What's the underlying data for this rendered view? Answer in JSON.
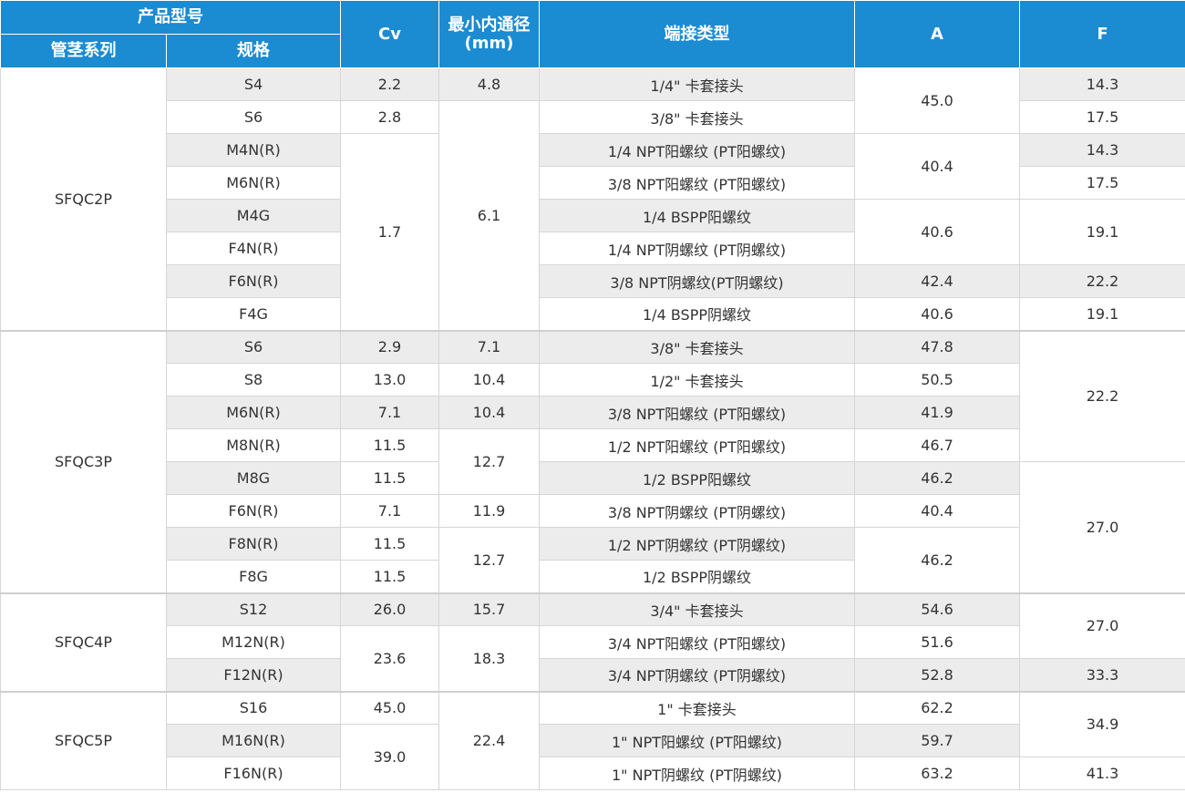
{
  "header": {
    "product_model": "产品型号",
    "series": "管茎系列",
    "spec": "规格",
    "cv": "Cv",
    "bore_line1": "最小内通径",
    "bore_line2": "(mm)",
    "end_type": "端接类型",
    "a": "A",
    "f": "F"
  },
  "series_names": [
    "SFQC2P",
    "SFQC3P",
    "SFQC4P",
    "SFQC5P"
  ],
  "specs": [
    "S4",
    "S6",
    "M4N(R)",
    "M6N(R)",
    "M4G",
    "F4N(R)",
    "F6N(R)",
    "F4G",
    "S6",
    "S8",
    "M6N(R)",
    "M8N(R)",
    "M8G",
    "F6N(R)",
    "F8N(R)",
    "F8G",
    "S12",
    "M12N(R)",
    "F12N(R)",
    "S16",
    "M16N(R)",
    "F16N(R)"
  ],
  "cv": [
    "2.2",
    "2.8",
    "1.7",
    "2.9",
    "13.0",
    "7.1",
    "11.5",
    "11.5",
    "7.1",
    "11.5",
    "11.5",
    "26.0",
    "23.6",
    "45.0",
    "39.0"
  ],
  "bore": [
    "4.8",
    "6.1",
    "7.1",
    "10.4",
    "10.4",
    "12.7",
    "11.9",
    "12.7",
    "15.7",
    "18.3",
    "22.4"
  ],
  "end_types": [
    "1/4\" 卡套接头",
    "3/8\" 卡套接头",
    "1/4 NPT阳螺纹 (PT阳螺纹)",
    "3/8 NPT阳螺纹 (PT阳螺纹)",
    "1/4 BSPP阳螺纹",
    "1/4 NPT阴螺纹 (PT阴螺纹)",
    "3/8 NPT阴螺纹(PT阴螺纹)",
    "1/4 BSPP阴螺纹",
    "3/8\" 卡套接头",
    "1/2\" 卡套接头",
    "3/8 NPT阳螺纹 (PT阳螺纹)",
    "1/2 NPT阳螺纹 (PT阳螺纹)",
    "1/2 BSPP阳螺纹",
    "3/8 NPT阴螺纹 (PT阴螺纹)",
    "1/2 NPT阴螺纹 (PT阴螺纹)",
    "1/2 BSPP阴螺纹",
    "3/4\" 卡套接头",
    "3/4 NPT阳螺纹 (PT阳螺纹)",
    "3/4 NPT阴螺纹 (PT阴螺纹)",
    "1\" 卡套接头",
    "1\" NPT阳螺纹 (PT阳螺纹)",
    "1\" NPT阴螺纹 (PT阴螺纹)"
  ],
  "a": [
    "45.0",
    "40.4",
    "40.6",
    "42.4",
    "40.6",
    "47.8",
    "50.5",
    "41.9",
    "46.7",
    "46.2",
    "40.4",
    "46.2",
    "54.6",
    "51.6",
    "52.8",
    "62.2",
    "59.7",
    "63.2"
  ],
  "f": [
    "14.3",
    "17.5",
    "14.3",
    "17.5",
    "19.1",
    "22.2",
    "19.1",
    "22.2",
    "27.0",
    "27.0",
    "33.3",
    "34.9",
    "41.3"
  ]
}
